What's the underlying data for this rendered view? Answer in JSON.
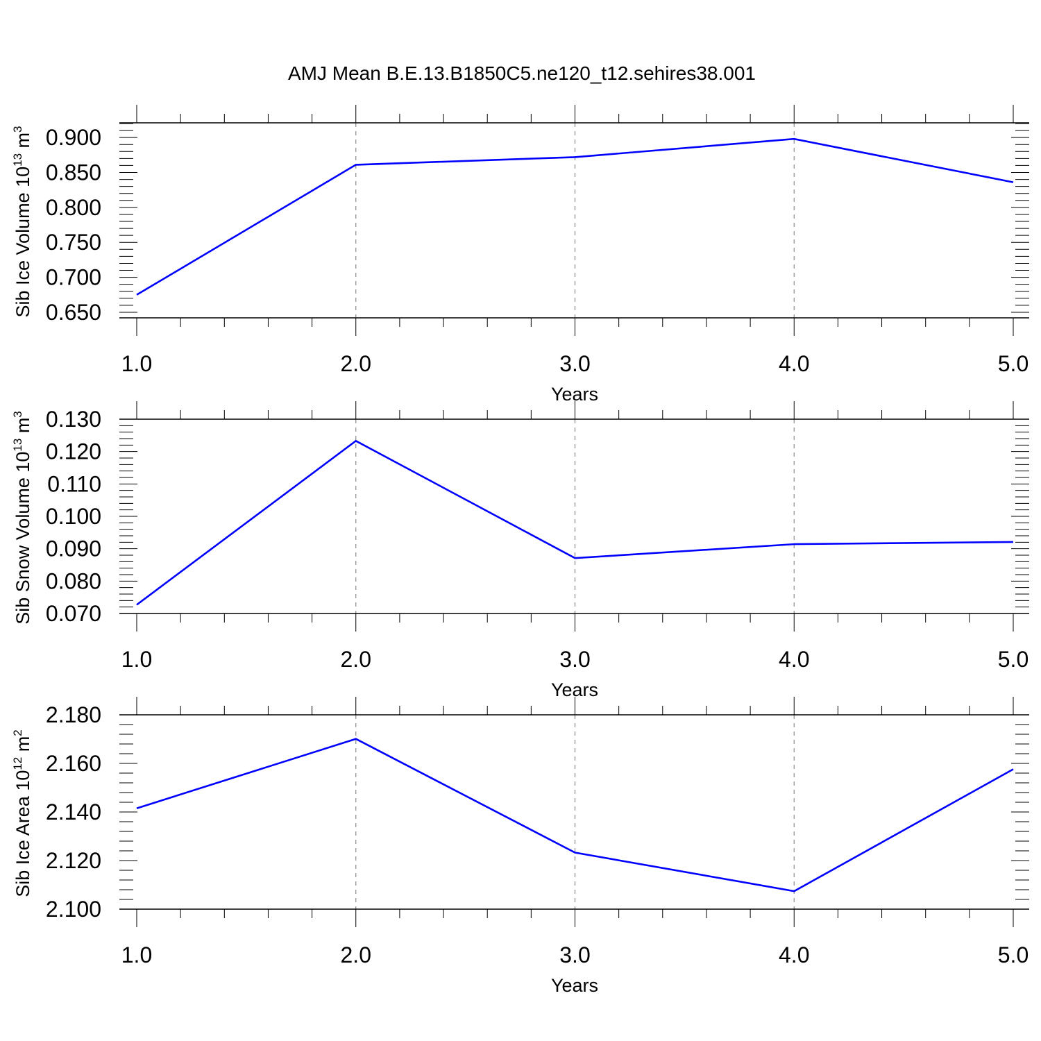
{
  "title": "AMJ Mean B.E.13.B1850C5.ne120_t12.sehires38.001",
  "colors": {
    "line": "#0000ff",
    "axis": "#000000",
    "grid": "#888888"
  },
  "chart_data": [
    {
      "type": "line",
      "xlabel": "Years",
      "ylabel": {
        "text": "Sib Ice Volume 10",
        "exponent": "13",
        "unit": "m",
        "unit_exponent": "3"
      },
      "x": [
        1.0,
        2.0,
        3.0,
        4.0,
        5.0
      ],
      "y": [
        0.675,
        0.861,
        0.872,
        0.898,
        0.836
      ],
      "xlim": [
        1.0,
        5.0
      ],
      "ylim": [
        0.642,
        0.921
      ],
      "xticks": [
        "1.0",
        "2.0",
        "3.0",
        "4.0",
        "5.0"
      ],
      "yticks": [
        "0.650",
        "0.700",
        "0.750",
        "0.800",
        "0.850",
        "0.900"
      ],
      "grid": "vertical dashed at major x ticks"
    },
    {
      "type": "line",
      "xlabel": "Years",
      "ylabel": {
        "text": "Sib Snow Volume 10",
        "exponent": "13",
        "unit": "m",
        "unit_exponent": "3"
      },
      "x": [
        1.0,
        2.0,
        3.0,
        4.0,
        5.0
      ],
      "y": [
        0.0727,
        0.1233,
        0.0871,
        0.0914,
        0.0921
      ],
      "xlim": [
        1.0,
        5.0
      ],
      "ylim": [
        0.07,
        0.13
      ],
      "xticks": [
        "1.0",
        "2.0",
        "3.0",
        "4.0",
        "5.0"
      ],
      "yticks": [
        "0.070",
        "0.080",
        "0.090",
        "0.100",
        "0.110",
        "0.120",
        "0.130"
      ],
      "grid": "vertical dashed at major x ticks"
    },
    {
      "type": "line",
      "xlabel": "Years",
      "ylabel": {
        "text": "Sib Ice Area 10",
        "exponent": "12",
        "unit": "m",
        "unit_exponent": "2"
      },
      "x": [
        1.0,
        2.0,
        3.0,
        4.0,
        5.0
      ],
      "y": [
        2.1415,
        2.1701,
        2.1233,
        2.1074,
        2.1576
      ],
      "xlim": [
        1.0,
        5.0
      ],
      "ylim": [
        2.1,
        2.18
      ],
      "xticks": [
        "1.0",
        "2.0",
        "3.0",
        "4.0",
        "5.0"
      ],
      "yticks": [
        "2.100",
        "2.120",
        "2.140",
        "2.160",
        "2.180"
      ],
      "grid": "vertical dashed at major x ticks"
    }
  ]
}
